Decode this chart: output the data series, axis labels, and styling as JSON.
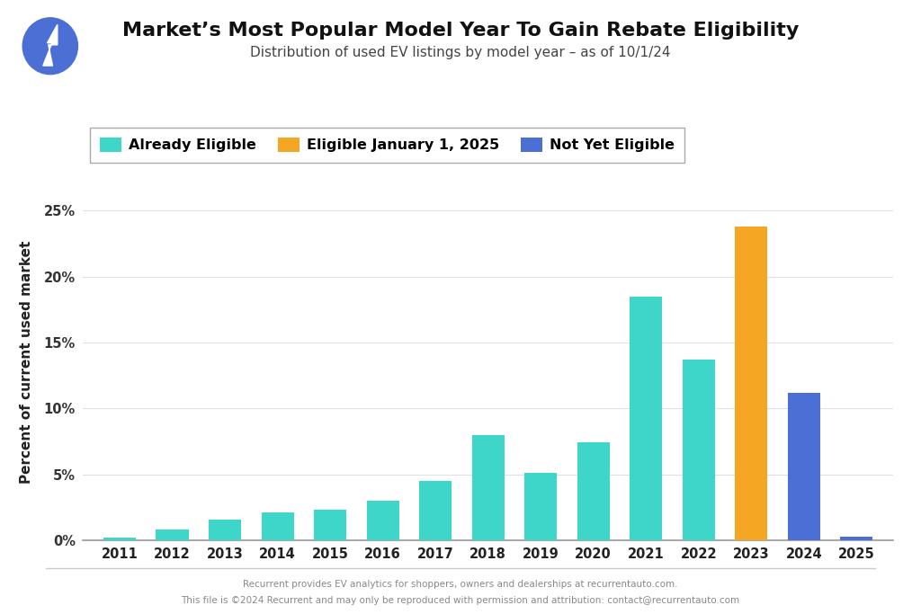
{
  "years": [
    2011,
    2012,
    2013,
    2014,
    2015,
    2016,
    2017,
    2018,
    2019,
    2020,
    2021,
    2022,
    2023,
    2024,
    2025
  ],
  "values": [
    0.2,
    0.8,
    1.6,
    2.1,
    2.3,
    3.0,
    4.5,
    8.0,
    5.1,
    7.4,
    18.5,
    13.7,
    23.8,
    11.2,
    0.3
  ],
  "colors": [
    "#3DD6C8",
    "#3DD6C8",
    "#3DD6C8",
    "#3DD6C8",
    "#3DD6C8",
    "#3DD6C8",
    "#3DD6C8",
    "#3DD6C8",
    "#3DD6C8",
    "#3DD6C8",
    "#3DD6C8",
    "#3DD6C8",
    "#F5A623",
    "#4B6FD4",
    "#4B6FD4"
  ],
  "title": "Market’s Most Popular Model Year To Gain Rebate Eligibility",
  "subtitle": "Distribution of used EV listings by model year – as of 10/1/24",
  "ylabel": "Percent of current used market",
  "ylim": [
    0,
    27
  ],
  "yticks": [
    0,
    5,
    10,
    15,
    20,
    25
  ],
  "ytick_labels": [
    "0%",
    "5%",
    "10%",
    "15%",
    "20%",
    "25%"
  ],
  "legend_labels": [
    "Already Eligible",
    "Eligible January 1, 2025",
    "Not Yet Eligible"
  ],
  "legend_colors": [
    "#3DD6C8",
    "#F5A623",
    "#4B6FD4"
  ],
  "bg_color": "#FFFFFF",
  "grid_color": "#E0E0E0",
  "title_fontsize": 16,
  "subtitle_fontsize": 11,
  "ylabel_fontsize": 11,
  "tick_fontsize": 10.5,
  "legend_fontsize": 11.5,
  "footer_line1": "Recurrent provides EV analytics for shoppers, owners and dealerships at recurrentauto.com.",
  "footer_line2": "This file is ©2024 Recurrent and may only be reproduced with permission and attribution: contact@recurrentauto.com",
  "bar_width": 0.62
}
